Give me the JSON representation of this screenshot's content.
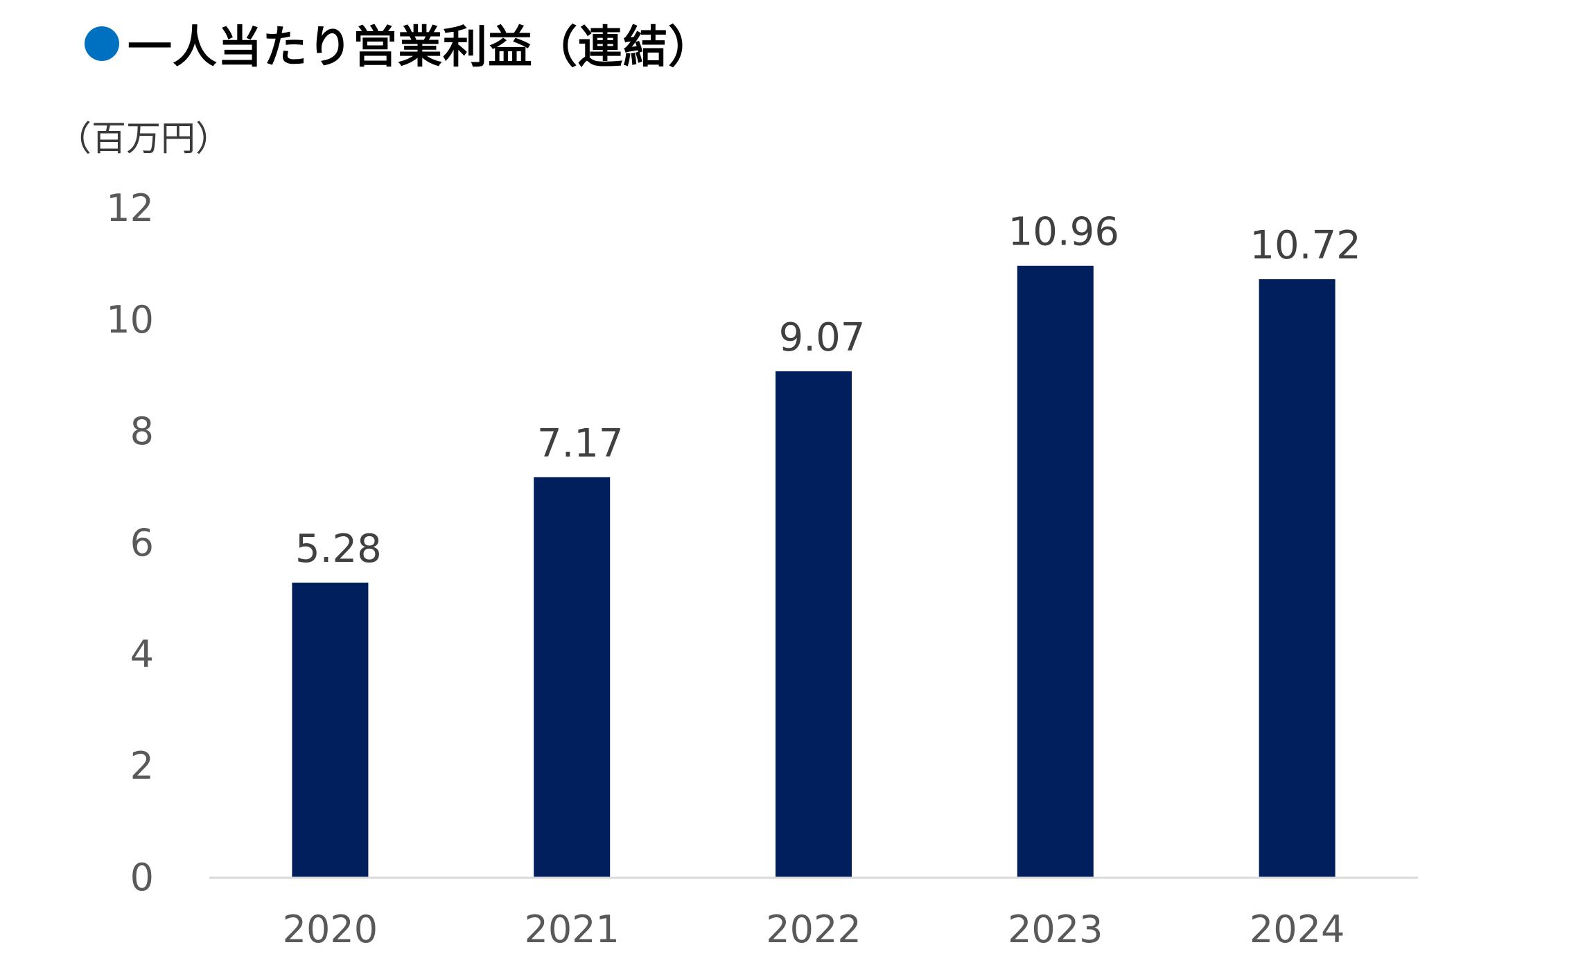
{
  "title": "一人当たり営業利益（連結）",
  "unit_label": "（百万円）",
  "colors": {
    "title_dot": "#0070c0",
    "bar": "#001f5c",
    "axis_line": "#d9d9d9"
  },
  "chart_data": {
    "type": "bar",
    "categories": [
      "2020",
      "2021",
      "2022",
      "2023",
      "2024"
    ],
    "values": [
      5.28,
      7.17,
      9.07,
      10.96,
      10.72
    ],
    "value_labels": [
      "5.28",
      "7.17",
      "9.07",
      "10.96",
      "10.72"
    ],
    "ylim": [
      0,
      12
    ],
    "yticks": [
      "0",
      "2",
      "4",
      "6",
      "8",
      "10",
      "12"
    ],
    "grid": false,
    "legend": "none"
  }
}
